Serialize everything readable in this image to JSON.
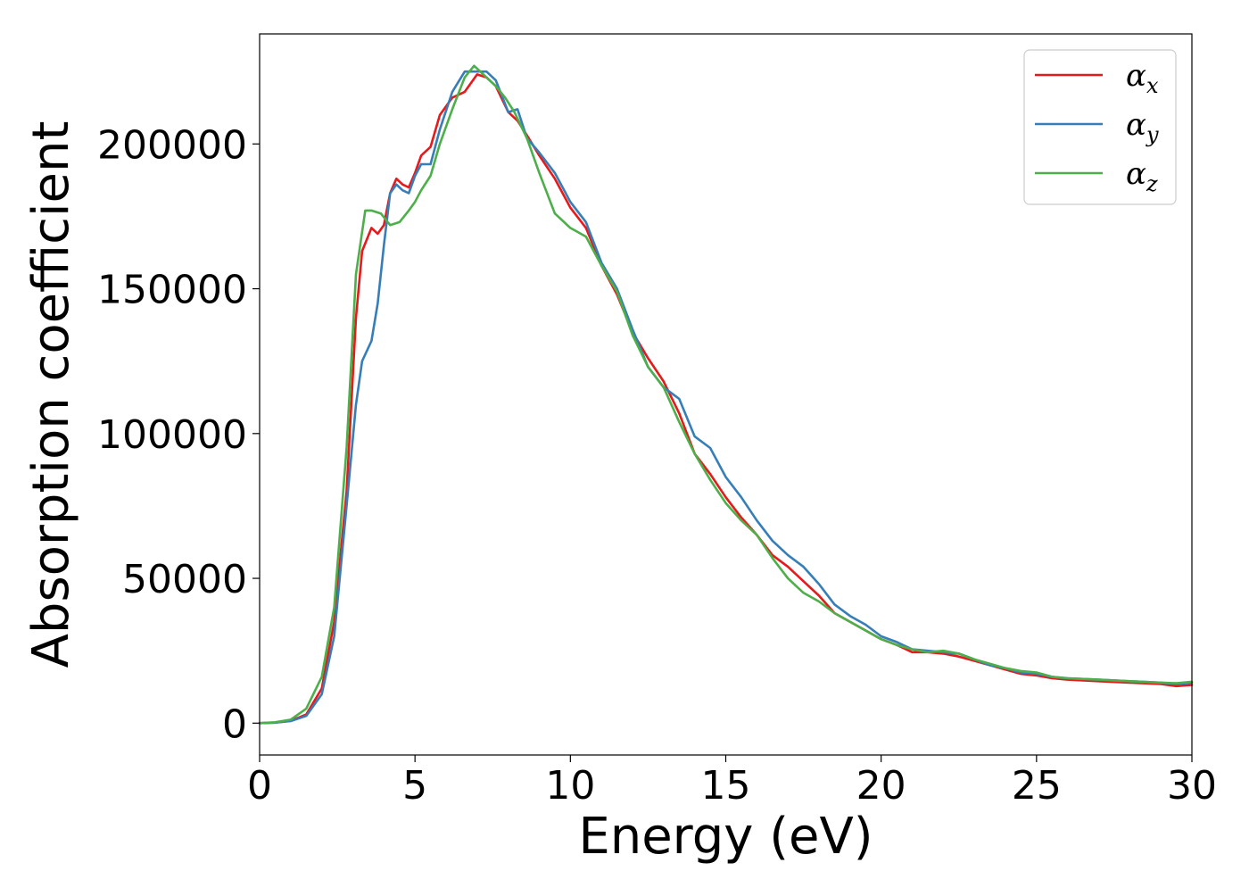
{
  "chart_data": {
    "type": "line",
    "title": "",
    "xlabel": "Energy (eV)",
    "ylabel": "Absorption coefficient",
    "xlim": [
      0,
      30
    ],
    "ylim": [
      -11000,
      238000
    ],
    "grid": false,
    "legend_position": "top-right",
    "x_ticks": [
      0,
      5,
      10,
      15,
      20,
      25,
      30
    ],
    "x_tick_labels": [
      "0",
      "5",
      "10",
      "15",
      "20",
      "25",
      "30"
    ],
    "y_ticks": [
      0,
      50000,
      100000,
      150000,
      200000
    ],
    "y_tick_labels": [
      "0",
      "50000",
      "100000",
      "150000",
      "200000"
    ],
    "series": [
      {
        "name": "αx",
        "legend_symbol": "α",
        "legend_subscript": "x",
        "color": "#e41a1c",
        "points": [
          [
            0,
            0
          ],
          [
            0.5,
            200
          ],
          [
            1,
            800
          ],
          [
            1.5,
            3000
          ],
          [
            2,
            12000
          ],
          [
            2.4,
            35000
          ],
          [
            2.8,
            80000
          ],
          [
            3.1,
            140000
          ],
          [
            3.3,
            163000
          ],
          [
            3.6,
            171000
          ],
          [
            3.8,
            169000
          ],
          [
            4.0,
            172000
          ],
          [
            4.2,
            183000
          ],
          [
            4.4,
            188000
          ],
          [
            4.6,
            186000
          ],
          [
            4.8,
            185000
          ],
          [
            5.0,
            190000
          ],
          [
            5.2,
            196000
          ],
          [
            5.5,
            199000
          ],
          [
            5.8,
            210000
          ],
          [
            6.2,
            216000
          ],
          [
            6.6,
            218000
          ],
          [
            7.0,
            224000
          ],
          [
            7.3,
            223000
          ],
          [
            7.6,
            220000
          ],
          [
            8.0,
            211000
          ],
          [
            8.3,
            208000
          ],
          [
            8.6,
            203000
          ],
          [
            9.0,
            196000
          ],
          [
            9.5,
            188000
          ],
          [
            10.0,
            178000
          ],
          [
            10.5,
            171000
          ],
          [
            11.0,
            158000
          ],
          [
            11.5,
            148000
          ],
          [
            12.0,
            135000
          ],
          [
            12.5,
            126000
          ],
          [
            13.0,
            118000
          ],
          [
            13.5,
            107000
          ],
          [
            14.0,
            93000
          ],
          [
            14.5,
            86000
          ],
          [
            15.0,
            78000
          ],
          [
            15.5,
            71000
          ],
          [
            16.0,
            65000
          ],
          [
            16.5,
            58000
          ],
          [
            17.0,
            54000
          ],
          [
            17.5,
            49000
          ],
          [
            18.0,
            44000
          ],
          [
            18.5,
            38000
          ],
          [
            19.0,
            35000
          ],
          [
            19.5,
            32000
          ],
          [
            20.0,
            29000
          ],
          [
            20.5,
            27000
          ],
          [
            21.0,
            24500
          ],
          [
            21.5,
            24500
          ],
          [
            22.0,
            24000
          ],
          [
            22.5,
            23000
          ],
          [
            23.0,
            21500
          ],
          [
            23.5,
            20000
          ],
          [
            24.0,
            18500
          ],
          [
            24.5,
            17000
          ],
          [
            25.0,
            16500
          ],
          [
            25.5,
            15500
          ],
          [
            26.0,
            15000
          ],
          [
            27.0,
            14500
          ],
          [
            28.0,
            14000
          ],
          [
            29.0,
            13500
          ],
          [
            29.5,
            12800
          ],
          [
            30.0,
            13200
          ]
        ]
      },
      {
        "name": "αy",
        "legend_symbol": "α",
        "legend_subscript": "y",
        "color": "#377eb8",
        "points": [
          [
            0,
            0
          ],
          [
            0.5,
            200
          ],
          [
            1,
            700
          ],
          [
            1.5,
            2500
          ],
          [
            2,
            10000
          ],
          [
            2.4,
            30000
          ],
          [
            2.8,
            75000
          ],
          [
            3.1,
            110000
          ],
          [
            3.3,
            125000
          ],
          [
            3.6,
            132000
          ],
          [
            3.8,
            145000
          ],
          [
            4.0,
            165000
          ],
          [
            4.2,
            183000
          ],
          [
            4.4,
            186000
          ],
          [
            4.6,
            184000
          ],
          [
            4.8,
            183000
          ],
          [
            5.0,
            189000
          ],
          [
            5.2,
            193000
          ],
          [
            5.5,
            193000
          ],
          [
            5.8,
            205000
          ],
          [
            6.2,
            218000
          ],
          [
            6.6,
            225000
          ],
          [
            7.0,
            225000
          ],
          [
            7.3,
            225000
          ],
          [
            7.6,
            222000
          ],
          [
            8.0,
            211000
          ],
          [
            8.3,
            212000
          ],
          [
            8.6,
            202000
          ],
          [
            9.0,
            197000
          ],
          [
            9.5,
            190000
          ],
          [
            10.0,
            180000
          ],
          [
            10.5,
            173000
          ],
          [
            11.0,
            159000
          ],
          [
            11.5,
            150000
          ],
          [
            12.0,
            136000
          ],
          [
            12.5,
            123000
          ],
          [
            13.0,
            116000
          ],
          [
            13.5,
            112000
          ],
          [
            14.0,
            99000
          ],
          [
            14.5,
            95000
          ],
          [
            15.0,
            85000
          ],
          [
            15.5,
            78000
          ],
          [
            16.0,
            70000
          ],
          [
            16.5,
            63000
          ],
          [
            17.0,
            58000
          ],
          [
            17.5,
            54000
          ],
          [
            18.0,
            48000
          ],
          [
            18.5,
            41000
          ],
          [
            19.0,
            37000
          ],
          [
            19.5,
            34000
          ],
          [
            20.0,
            30000
          ],
          [
            20.5,
            28000
          ],
          [
            21.0,
            25500
          ],
          [
            21.5,
            25000
          ],
          [
            22.0,
            24500
          ],
          [
            22.5,
            24000
          ],
          [
            23.0,
            22000
          ],
          [
            23.5,
            20000
          ],
          [
            24.0,
            19000
          ],
          [
            24.5,
            17500
          ],
          [
            25.0,
            17000
          ],
          [
            25.5,
            16000
          ],
          [
            26.0,
            15500
          ],
          [
            27.0,
            15000
          ],
          [
            28.0,
            14500
          ],
          [
            29.0,
            14000
          ],
          [
            29.5,
            13500
          ],
          [
            30.0,
            14000
          ]
        ]
      },
      {
        "name": "αz",
        "legend_symbol": "α",
        "legend_subscript": "z",
        "color": "#4daf4a",
        "points": [
          [
            0,
            0
          ],
          [
            0.5,
            300
          ],
          [
            1,
            1200
          ],
          [
            1.5,
            5000
          ],
          [
            2,
            16000
          ],
          [
            2.4,
            40000
          ],
          [
            2.8,
            95000
          ],
          [
            3.1,
            155000
          ],
          [
            3.4,
            177000
          ],
          [
            3.6,
            177000
          ],
          [
            3.9,
            176000
          ],
          [
            4.2,
            172000
          ],
          [
            4.5,
            173000
          ],
          [
            4.8,
            177000
          ],
          [
            5.0,
            180000
          ],
          [
            5.2,
            184000
          ],
          [
            5.5,
            189000
          ],
          [
            5.8,
            200000
          ],
          [
            6.2,
            212000
          ],
          [
            6.6,
            223000
          ],
          [
            6.9,
            227000
          ],
          [
            7.2,
            224000
          ],
          [
            7.6,
            220000
          ],
          [
            7.9,
            216000
          ],
          [
            8.2,
            211000
          ],
          [
            8.6,
            202000
          ],
          [
            9.0,
            190000
          ],
          [
            9.5,
            176000
          ],
          [
            10.0,
            171000
          ],
          [
            10.5,
            168000
          ],
          [
            11.0,
            158000
          ],
          [
            11.5,
            149000
          ],
          [
            12.0,
            134000
          ],
          [
            12.5,
            123000
          ],
          [
            13.0,
            116000
          ],
          [
            13.5,
            104000
          ],
          [
            14.0,
            93000
          ],
          [
            14.5,
            84000
          ],
          [
            15.0,
            76000
          ],
          [
            15.5,
            70000
          ],
          [
            16.0,
            65000
          ],
          [
            16.5,
            57000
          ],
          [
            17.0,
            50000
          ],
          [
            17.5,
            45000
          ],
          [
            18.0,
            42000
          ],
          [
            18.5,
            38000
          ],
          [
            19.0,
            35000
          ],
          [
            19.5,
            32000
          ],
          [
            20.0,
            29000
          ],
          [
            20.5,
            27000
          ],
          [
            21.0,
            25500
          ],
          [
            21.5,
            24500
          ],
          [
            22.0,
            25000
          ],
          [
            22.5,
            24000
          ],
          [
            23.0,
            22000
          ],
          [
            23.5,
            20500
          ],
          [
            24.0,
            19000
          ],
          [
            24.5,
            18000
          ],
          [
            25.0,
            17500
          ],
          [
            25.5,
            16000
          ],
          [
            26.0,
            15500
          ],
          [
            27.0,
            15000
          ],
          [
            28.0,
            14500
          ],
          [
            29.0,
            14000
          ],
          [
            29.5,
            13800
          ],
          [
            30.0,
            14300
          ]
        ]
      }
    ]
  }
}
